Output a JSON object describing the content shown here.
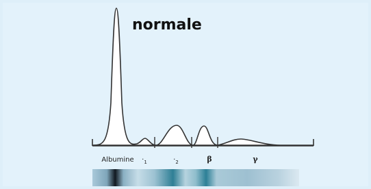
{
  "title": "normale",
  "fractions": [
    {
      "label": "Albumine"
    },
    {
      "label": "·",
      "sub": "1"
    },
    {
      "label": "·",
      "sub": "2"
    },
    {
      "label": "β"
    },
    {
      "label": "γ"
    }
  ]
}
